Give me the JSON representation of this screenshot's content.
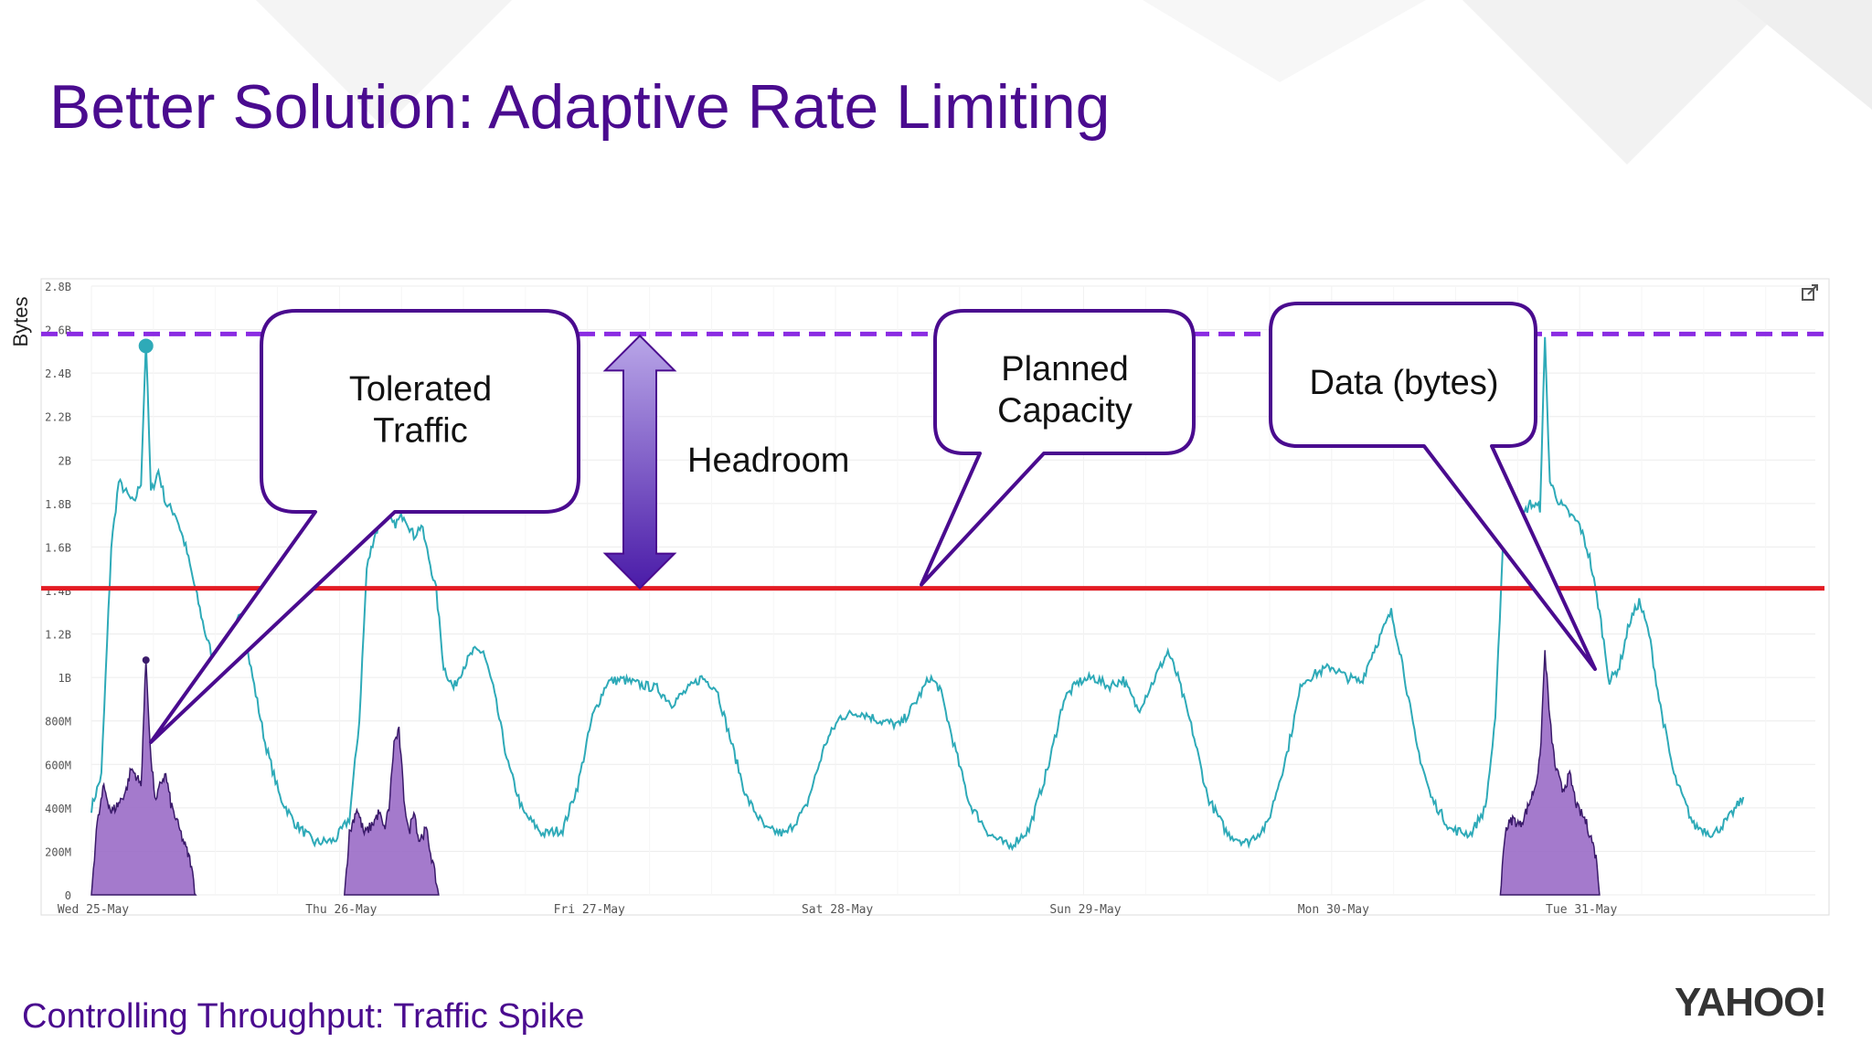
{
  "slide": {
    "title": "Better Solution: Adaptive Rate Limiting",
    "footer": "Controlling Throughput: Traffic Spike",
    "logo": "YAHOO!"
  },
  "colors": {
    "title": "#4a0b8f",
    "series_line": "#2eaab8",
    "spike_fill": "#9a6bc6",
    "spike_stroke": "#3a1a6a",
    "capacity_dashed": "#8a2be2",
    "planned_capacity": "#e31b23",
    "callout_border": "#4a0b8f",
    "arrow_top": "#b9a6e8",
    "arrow_bottom": "#4a1ba8"
  },
  "chart_data": {
    "type": "line",
    "ylabel": "Bytes",
    "y_ticks": [
      "0",
      "200M",
      "400M",
      "600M",
      "800M",
      "1B",
      "1.2B",
      "1.4B",
      "1.6B",
      "1.8B",
      "2B",
      "2.2B",
      "2.4B",
      "2.6B",
      "2.8B"
    ],
    "x_ticks": [
      "Wed 25-May",
      "Thu 26-May",
      "Fri 27-May",
      "Sat 28-May",
      "Sun 29-May",
      "Mon 30-May",
      "Tue 31-May"
    ],
    "ylim": [
      0,
      2800000000
    ],
    "xlim": [
      0,
      6.95
    ],
    "tolerated_capacity": 2580000000,
    "planned_capacity": 1410000000,
    "series": [
      {
        "points": [
          [
            0.0,
            400000000.0
          ],
          [
            0.04,
            550000000.0
          ],
          [
            0.08,
            1600000000.0
          ],
          [
            0.11,
            1900000000.0
          ],
          [
            0.14,
            1850000000.0
          ],
          [
            0.17,
            1800000000.0
          ],
          [
            0.2,
            1900000000.0
          ],
          [
            0.22,
            2550000000.0
          ],
          [
            0.24,
            1850000000.0
          ],
          [
            0.27,
            1950000000.0
          ],
          [
            0.3,
            1800000000.0
          ],
          [
            0.34,
            1750000000.0
          ],
          [
            0.38,
            1600000000.0
          ],
          [
            0.42,
            1400000000.0
          ],
          [
            0.46,
            1200000000.0
          ],
          [
            0.5,
            1050000000.0
          ],
          [
            0.55,
            1100000000.0
          ],
          [
            0.6,
            1300000000.0
          ],
          [
            0.65,
            1000000000.0
          ],
          [
            0.7,
            700000000.0
          ],
          [
            0.76,
            450000000.0
          ],
          [
            0.82,
            330000000.0
          ],
          [
            0.9,
            240000000.0
          ],
          [
            0.98,
            250000000.0
          ],
          [
            1.04,
            350000000.0
          ],
          [
            1.08,
            800000000.0
          ],
          [
            1.11,
            1500000000.0
          ],
          [
            1.14,
            1650000000.0
          ],
          [
            1.18,
            1750000000.0
          ],
          [
            1.22,
            1700000000.0
          ],
          [
            1.26,
            1750000000.0
          ],
          [
            1.3,
            1650000000.0
          ],
          [
            1.33,
            1700000000.0
          ],
          [
            1.36,
            1550000000.0
          ],
          [
            1.39,
            1400000000.0
          ],
          [
            1.42,
            1050000000.0
          ],
          [
            1.46,
            950000000.0
          ],
          [
            1.5,
            1050000000.0
          ],
          [
            1.54,
            1120000000.0
          ],
          [
            1.58,
            1120000000.0
          ],
          [
            1.62,
            950000000.0
          ],
          [
            1.68,
            600000000.0
          ],
          [
            1.74,
            380000000.0
          ],
          [
            1.82,
            280000000.0
          ],
          [
            1.9,
            300000000.0
          ],
          [
            1.96,
            500000000.0
          ],
          [
            2.02,
            820000000.0
          ],
          [
            2.08,
            980000000.0
          ],
          [
            2.14,
            990000000.0
          ],
          [
            2.2,
            970000000.0
          ],
          [
            2.28,
            950000000.0
          ],
          [
            2.34,
            880000000.0
          ],
          [
            2.4,
            940000000.0
          ],
          [
            2.46,
            1000000000.0
          ],
          [
            2.52,
            950000000.0
          ],
          [
            2.58,
            700000000.0
          ],
          [
            2.64,
            450000000.0
          ],
          [
            2.72,
            300000000.0
          ],
          [
            2.8,
            280000000.0
          ],
          [
            2.88,
            400000000.0
          ],
          [
            2.96,
            700000000.0
          ],
          [
            3.02,
            820000000.0
          ],
          [
            3.1,
            840000000.0
          ],
          [
            3.18,
            800000000.0
          ],
          [
            3.26,
            780000000.0
          ],
          [
            3.32,
            880000000.0
          ],
          [
            3.38,
            1000000000.0
          ],
          [
            3.42,
            950000000.0
          ],
          [
            3.48,
            680000000.0
          ],
          [
            3.54,
            420000000.0
          ],
          [
            3.62,
            280000000.0
          ],
          [
            3.7,
            220000000.0
          ],
          [
            3.78,
            300000000.0
          ],
          [
            3.86,
            600000000.0
          ],
          [
            3.92,
            900000000.0
          ],
          [
            3.98,
            980000000.0
          ],
          [
            4.04,
            1000000000.0
          ],
          [
            4.1,
            960000000.0
          ],
          [
            4.16,
            990000000.0
          ],
          [
            4.22,
            850000000.0
          ],
          [
            4.28,
            980000000.0
          ],
          [
            4.34,
            1120000000.0
          ],
          [
            4.38,
            1000000000.0
          ],
          [
            4.44,
            750000000.0
          ],
          [
            4.5,
            450000000.0
          ],
          [
            4.58,
            280000000.0
          ],
          [
            4.66,
            240000000.0
          ],
          [
            4.74,
            320000000.0
          ],
          [
            4.82,
            650000000.0
          ],
          [
            4.88,
            980000000.0
          ],
          [
            4.94,
            1020000000.0
          ],
          [
            5.0,
            1050000000.0
          ],
          [
            5.06,
            1000000000.0
          ],
          [
            5.12,
            980000000.0
          ],
          [
            5.16,
            1100000000.0
          ],
          [
            5.2,
            1200000000.0
          ],
          [
            5.24,
            1300000000.0
          ],
          [
            5.28,
            1100000000.0
          ],
          [
            5.34,
            700000000.0
          ],
          [
            5.4,
            450000000.0
          ],
          [
            5.48,
            300000000.0
          ],
          [
            5.56,
            280000000.0
          ],
          [
            5.62,
            400000000.0
          ],
          [
            5.66,
            800000000.0
          ],
          [
            5.69,
            1600000000.0
          ],
          [
            5.72,
            1750000000.0
          ],
          [
            5.76,
            1720000000.0
          ],
          [
            5.8,
            1800000000.0
          ],
          [
            5.84,
            1780000000.0
          ],
          [
            5.86,
            2550000000.0
          ],
          [
            5.88,
            1900000000.0
          ],
          [
            5.92,
            1800000000.0
          ],
          [
            5.96,
            1750000000.0
          ],
          [
            6.0,
            1700000000.0
          ],
          [
            6.04,
            1550000000.0
          ],
          [
            6.08,
            1300000000.0
          ],
          [
            6.12,
            980000000.0
          ],
          [
            6.16,
            1050000000.0
          ],
          [
            6.2,
            1250000000.0
          ],
          [
            6.24,
            1350000000.0
          ],
          [
            6.28,
            1200000000.0
          ],
          [
            6.32,
            900000000.0
          ],
          [
            6.38,
            550000000.0
          ],
          [
            6.46,
            320000000.0
          ],
          [
            6.54,
            280000000.0
          ],
          [
            6.6,
            350000000.0
          ],
          [
            6.66,
            450000000.0
          ]
        ]
      },
      {
        "points": [
          [
            0.0,
            0.0
          ],
          [
            0.02,
            300000000.0
          ],
          [
            0.05,
            500000000.0
          ],
          [
            0.08,
            380000000.0
          ],
          [
            0.11,
            420000000.0
          ],
          [
            0.14,
            480000000.0
          ],
          [
            0.16,
            580000000.0
          ],
          [
            0.18,
            550000000.0
          ],
          [
            0.2,
            500000000.0
          ],
          [
            0.22,
            1080000000.0
          ],
          [
            0.24,
            620000000.0
          ],
          [
            0.26,
            420000000.0
          ],
          [
            0.28,
            520000000.0
          ],
          [
            0.3,
            550000000.0
          ],
          [
            0.32,
            420000000.0
          ],
          [
            0.34,
            350000000.0
          ],
          [
            0.37,
            250000000.0
          ],
          [
            0.4,
            150000000.0
          ],
          [
            0.42,
            0.0
          ]
        ]
      },
      {
        "points": [
          [
            1.02,
            0.0
          ],
          [
            1.04,
            280000000.0
          ],
          [
            1.07,
            400000000.0
          ],
          [
            1.1,
            280000000.0
          ],
          [
            1.13,
            320000000.0
          ],
          [
            1.16,
            380000000.0
          ],
          [
            1.18,
            300000000.0
          ],
          [
            1.2,
            400000000.0
          ],
          [
            1.22,
            700000000.0
          ],
          [
            1.24,
            750000000.0
          ],
          [
            1.26,
            450000000.0
          ],
          [
            1.28,
            280000000.0
          ],
          [
            1.3,
            400000000.0
          ],
          [
            1.32,
            250000000.0
          ],
          [
            1.35,
            300000000.0
          ],
          [
            1.38,
            120000000.0
          ],
          [
            1.4,
            0.0
          ]
        ]
      },
      {
        "points": [
          [
            5.68,
            0.0
          ],
          [
            5.7,
            300000000.0
          ],
          [
            5.73,
            350000000.0
          ],
          [
            5.76,
            320000000.0
          ],
          [
            5.79,
            400000000.0
          ],
          [
            5.82,
            500000000.0
          ],
          [
            5.84,
            620000000.0
          ],
          [
            5.86,
            1120000000.0
          ],
          [
            5.88,
            800000000.0
          ],
          [
            5.9,
            600000000.0
          ],
          [
            5.93,
            480000000.0
          ],
          [
            5.96,
            550000000.0
          ],
          [
            5.99,
            400000000.0
          ],
          [
            6.02,
            350000000.0
          ],
          [
            6.05,
            250000000.0
          ],
          [
            6.07,
            150000000.0
          ],
          [
            6.08,
            0.0
          ]
        ]
      }
    ],
    "annotations": {
      "tolerated_traffic": "Tolerated\nTraffic",
      "headroom": "Headroom",
      "planned_capacity": "Planned\nCapacity",
      "data_bytes": "Data (bytes)"
    }
  }
}
